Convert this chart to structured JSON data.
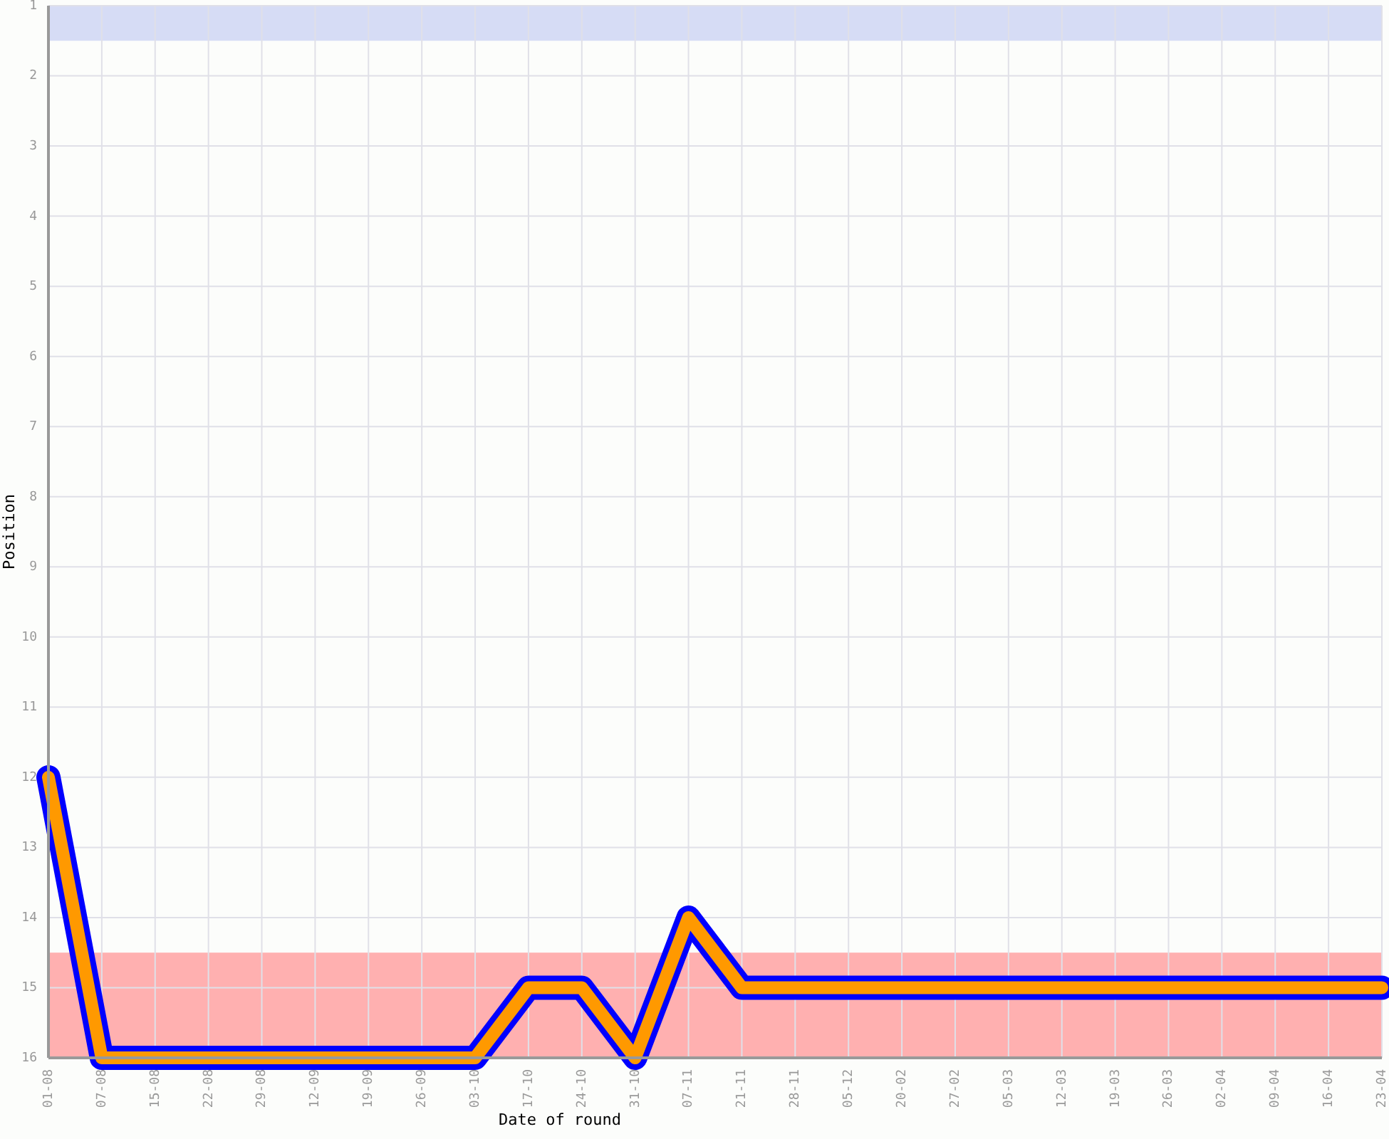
{
  "chart_data": {
    "type": "line",
    "xlabel": "Date of round",
    "ylabel": "Position",
    "categories": [
      "01-08",
      "07-08",
      "15-08",
      "22-08",
      "29-08",
      "12-09",
      "19-09",
      "26-09",
      "03-10",
      "17-10",
      "24-10",
      "31-10",
      "07-11",
      "21-11",
      "28-11",
      "05-12",
      "20-02",
      "27-02",
      "05-03",
      "12-03",
      "19-03",
      "26-03",
      "02-04",
      "09-04",
      "16-04",
      "23-04"
    ],
    "series": [
      {
        "color": "#ff9900",
        "values": [
          12,
          16,
          16,
          16,
          16,
          16,
          16,
          16,
          16,
          15,
          15,
          16,
          14,
          15,
          15,
          15,
          15,
          15,
          15,
          15,
          15,
          15,
          15,
          15,
          15,
          15
        ]
      }
    ],
    "ylim": [
      16,
      1
    ],
    "yticks": [
      1,
      2,
      3,
      4,
      5,
      6,
      7,
      8,
      9,
      10,
      11,
      12,
      13,
      14,
      15,
      16
    ],
    "grid": true,
    "bands": [
      {
        "axis": "y",
        "from": 1,
        "to": 1.5,
        "color": "#d6dcf5"
      },
      {
        "axis": "y",
        "from": 14.5,
        "to": 16,
        "color": "#ffb0b0"
      }
    ]
  }
}
